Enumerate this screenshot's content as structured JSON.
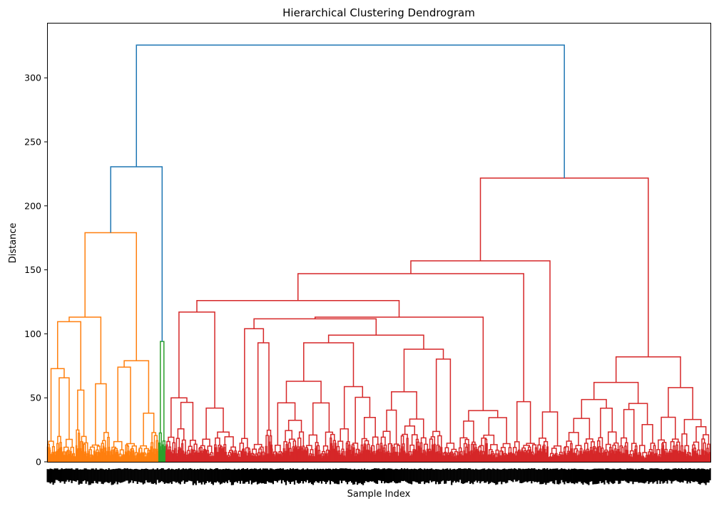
{
  "chart_data": {
    "type": "dendrogram",
    "title": "Hierarchical Clustering Dendrogram",
    "xlabel": "Sample Index",
    "ylabel": "Distance",
    "ylim": [
      0,
      343
    ],
    "yticks": [
      "0",
      "50",
      "100",
      "150",
      "200",
      "250",
      "300"
    ],
    "grid": false,
    "colors": {
      "above_threshold": "#1f77b4",
      "cluster_1": "#ff7f0e",
      "cluster_2": "#2ca02c",
      "cluster_3": "#d62728"
    },
    "tree": {
      "h": 325.6,
      "color": "#1f77b4",
      "children": [
        {
          "h": 230.5,
          "color": "#1f77b4",
          "children": [
            {
              "h": 179,
              "color": "#ff7f0e",
              "children": [
                {
                  "h": 113,
                  "children": [
                    {
                      "h": 109.5,
                      "children": [
                        {
                          "h": 72.8,
                          "n": 40
                        },
                        {
                          "h": 56,
                          "n": 18
                        }
                      ]
                    },
                    {
                      "h": 61,
                      "n": 30
                    }
                  ]
                },
                {
                  "h": 79,
                  "children": [
                    {
                      "h": 74,
                      "n": 40
                    },
                    {
                      "h": 38,
                      "n": 28
                    }
                  ]
                }
              ]
            },
            {
              "h": 94,
              "n": 10,
              "color": "#2ca02c"
            }
          ]
        },
        {
          "h": 221.7,
          "color": "#d62728",
          "children": [
            {
              "h": 157,
              "children": [
                {
                  "h": 147,
                  "children": [
                    {
                      "h": 126,
                      "children": [
                        {
                          "h": 117,
                          "children": [
                            {
                              "h": 50,
                              "n": 45
                            },
                            {
                              "h": 42,
                              "n": 55
                            }
                          ]
                        },
                        {
                          "h": 113,
                          "children": [
                            {
                              "h": 111.7,
                              "children": [
                                {
                                  "h": 104,
                                  "n": 50
                                },
                                {
                                  "h": 99,
                                  "children": [
                                    {
                                      "h": 93,
                                      "n": 150
                                    },
                                    {
                                      "h": 88,
                                      "n": 110
                                    }
                                  ]
                                }
                              ]
                            },
                            {
                              "h": 40,
                              "n": 75
                            }
                          ]
                        }
                      ]
                    },
                    {
                      "h": 47,
                      "n": 35
                    }
                  ]
                },
                {
                  "h": 39,
                  "n": 37
                }
              ]
            },
            {
              "h": 82,
              "children": [
                {
                  "h": 62,
                  "n": 130
                },
                {
                  "h": 58,
                  "n": 76
                }
              ]
            }
          ]
        }
      ]
    }
  }
}
